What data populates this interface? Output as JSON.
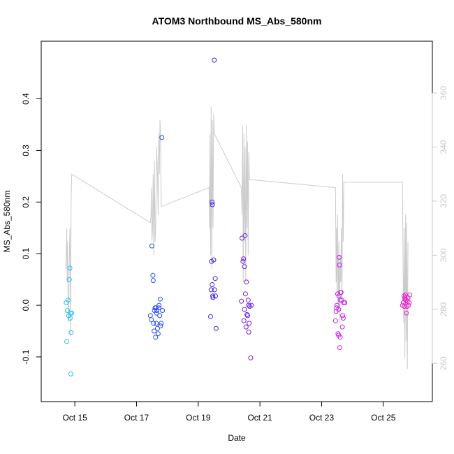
{
  "chart_data": {
    "type": "scatter",
    "title": "ATOM3 Northbound MS_Abs_580nm",
    "xlabel": "Date",
    "ylabel": "MS_Abs_580nm",
    "x_ticks": [
      "Oct 15",
      "Oct 17",
      "Oct 19",
      "Oct 21",
      "Oct 23",
      "Oct 25"
    ],
    "x_tick_days": [
      15,
      17,
      19,
      21,
      23,
      25
    ],
    "xlim_days": [
      14.25,
      26.25
    ],
    "y_ticks": [
      "-0.1",
      "0.0",
      "0.1",
      "0.2",
      "0.3",
      "0.4"
    ],
    "y_tick_values": [
      -0.1,
      0.0,
      0.1,
      0.2,
      0.3,
      0.4
    ],
    "ylim": [
      -0.165,
      0.49
    ],
    "y2_ticks": [
      "260",
      "280",
      "300",
      "320",
      "340",
      "360"
    ],
    "y2_tick_values": [
      260,
      280,
      300,
      320,
      340,
      360
    ],
    "y2lim": [
      250,
      375
    ],
    "grid": false,
    "series": [
      {
        "marker": "open-circle",
        "color_gradient": [
          "#1ec8ee",
          "#1e64e6",
          "#3c1ee6",
          "#8c1ee6",
          "#c81ee6",
          "#ee1ecc"
        ],
        "points": [
          [
            14.72,
            0.005
          ],
          [
            14.74,
            -0.07
          ],
          [
            14.76,
            -0.01
          ],
          [
            14.78,
            0.01
          ],
          [
            14.8,
            -0.02
          ],
          [
            14.82,
            0.05
          ],
          [
            14.84,
            0.072
          ],
          [
            14.85,
            -0.025
          ],
          [
            14.86,
            -0.015
          ],
          [
            14.87,
            -0.133
          ],
          [
            14.88,
            -0.053
          ],
          [
            14.9,
            -0.015
          ],
          [
            17.45,
            -0.02
          ],
          [
            17.48,
            -0.028
          ],
          [
            17.5,
            0.115
          ],
          [
            17.53,
            0.058
          ],
          [
            17.54,
            0.048
          ],
          [
            17.55,
            -0.035
          ],
          [
            17.57,
            -0.05
          ],
          [
            17.58,
            -0.01
          ],
          [
            17.6,
            -0.005
          ],
          [
            17.62,
            -0.062
          ],
          [
            17.63,
            -0.005
          ],
          [
            17.64,
            -0.035
          ],
          [
            17.65,
            -0.015
          ],
          [
            17.66,
            -0.01
          ],
          [
            17.68,
            -0.045
          ],
          [
            17.7,
            -0.055
          ],
          [
            17.72,
            -0.005
          ],
          [
            17.73,
            0.0
          ],
          [
            17.75,
            -0.02
          ],
          [
            17.77,
            0.012
          ],
          [
            17.78,
            -0.04
          ],
          [
            17.8,
            -0.035
          ],
          [
            17.82,
            0.325
          ],
          [
            17.84,
            -0.01
          ],
          [
            19.4,
            -0.022
          ],
          [
            19.42,
            0.03
          ],
          [
            19.43,
            0.085
          ],
          [
            19.45,
            0.2
          ],
          [
            19.46,
            0.195
          ],
          [
            19.47,
            0.018
          ],
          [
            19.48,
            0.015
          ],
          [
            19.5,
            0.088
          ],
          [
            19.52,
            0.475
          ],
          [
            19.53,
            0.03
          ],
          [
            19.55,
            0.052
          ],
          [
            19.56,
            0.018
          ],
          [
            19.58,
            -0.045
          ],
          [
            19.45,
            0.04
          ],
          [
            20.4,
            0.008
          ],
          [
            20.42,
            0.13
          ],
          [
            20.45,
            0.085
          ],
          [
            20.47,
            0.09
          ],
          [
            20.5,
            -0.008
          ],
          [
            20.52,
            0.135
          ],
          [
            20.53,
            0.022
          ],
          [
            20.55,
            -0.042
          ],
          [
            20.56,
            0.045
          ],
          [
            20.58,
            -0.018
          ],
          [
            20.6,
            -0.02
          ],
          [
            20.62,
            0.01
          ],
          [
            20.63,
            0.0
          ],
          [
            20.64,
            -0.052
          ],
          [
            20.65,
            -0.035
          ],
          [
            20.67,
            -0.002
          ],
          [
            20.7,
            -0.102
          ],
          [
            20.72,
            0.0
          ],
          [
            20.48,
            -0.03
          ],
          [
            20.5,
            0.075
          ],
          [
            23.45,
            -0.03
          ],
          [
            23.47,
            -0.012
          ],
          [
            23.48,
            -0.005
          ],
          [
            23.5,
            0.0
          ],
          [
            23.52,
            0.022
          ],
          [
            23.53,
            -0.055
          ],
          [
            23.55,
            -0.058
          ],
          [
            23.56,
            0.018
          ],
          [
            23.57,
            0.093
          ],
          [
            23.58,
            0.078
          ],
          [
            23.59,
            -0.082
          ],
          [
            23.6,
            -0.062
          ],
          [
            23.62,
            0.025
          ],
          [
            23.63,
            0.025
          ],
          [
            23.65,
            0.01
          ],
          [
            23.67,
            -0.042
          ],
          [
            23.68,
            -0.02
          ],
          [
            23.7,
            -0.025
          ],
          [
            23.72,
            0.005
          ],
          [
            23.75,
            0.005
          ],
          [
            23.55,
            -0.008
          ],
          [
            23.6,
            0.01
          ],
          [
            25.62,
            0.0
          ],
          [
            25.65,
            0.005
          ],
          [
            25.67,
            0.018
          ],
          [
            25.68,
            -0.002
          ],
          [
            25.7,
            0.015
          ],
          [
            25.72,
            0.02
          ],
          [
            25.73,
            0.01
          ],
          [
            25.75,
            -0.015
          ],
          [
            25.77,
            -0.002
          ],
          [
            25.78,
            0.008
          ],
          [
            25.8,
            0.015
          ],
          [
            25.82,
            0.0
          ],
          [
            25.84,
            0.005
          ],
          [
            25.86,
            0.02
          ],
          [
            25.7,
            0.012
          ]
        ]
      },
      {
        "axis": "right",
        "kind": "line",
        "color": "#cccccc",
        "points": [
          [
            14.7,
            295
          ],
          [
            14.72,
            300
          ],
          [
            14.74,
            310
          ],
          [
            14.75,
            290
          ],
          [
            14.76,
            305
          ],
          [
            14.78,
            285
          ],
          [
            14.8,
            275
          ],
          [
            14.82,
            300
          ],
          [
            14.84,
            310
          ],
          [
            14.86,
            270
          ],
          [
            14.88,
            320
          ],
          [
            14.9,
            330
          ],
          [
            17.45,
            312
          ],
          [
            17.47,
            315
          ],
          [
            17.48,
            325
          ],
          [
            17.5,
            305
          ],
          [
            17.52,
            310
          ],
          [
            17.54,
            330
          ],
          [
            17.56,
            300
          ],
          [
            17.58,
            335
          ],
          [
            17.6,
            305
          ],
          [
            17.62,
            310
          ],
          [
            17.65,
            340
          ],
          [
            17.68,
            330
          ],
          [
            17.7,
            315
          ],
          [
            17.72,
            345
          ],
          [
            17.74,
            330
          ],
          [
            17.76,
            350
          ],
          [
            17.78,
            345
          ],
          [
            17.8,
            318
          ],
          [
            19.35,
            325
          ],
          [
            19.37,
            310
          ],
          [
            19.38,
            345
          ],
          [
            19.4,
            300
          ],
          [
            19.42,
            355
          ],
          [
            19.44,
            295
          ],
          [
            19.46,
            350
          ],
          [
            19.48,
            310
          ],
          [
            19.5,
            352
          ],
          [
            19.52,
            345
          ],
          [
            20.4,
            325
          ],
          [
            20.42,
            315
          ],
          [
            20.44,
            348
          ],
          [
            20.46,
            290
          ],
          [
            20.48,
            345
          ],
          [
            20.5,
            305
          ],
          [
            20.52,
            340
          ],
          [
            20.54,
            290
          ],
          [
            20.56,
            348
          ],
          [
            20.58,
            310
          ],
          [
            20.6,
            342
          ],
          [
            20.62,
            300
          ],
          [
            20.64,
            338
          ],
          [
            20.66,
            328
          ],
          [
            23.45,
            325
          ],
          [
            23.47,
            290
          ],
          [
            23.48,
            310
          ],
          [
            23.5,
            285
          ],
          [
            23.52,
            315
          ],
          [
            23.54,
            280
          ],
          [
            23.56,
            305
          ],
          [
            23.58,
            275
          ],
          [
            23.6,
            300
          ],
          [
            23.62,
            290
          ],
          [
            23.64,
            310
          ],
          [
            23.66,
            280
          ],
          [
            23.68,
            330
          ],
          [
            23.7,
            305
          ],
          [
            23.72,
            327
          ],
          [
            25.62,
            327
          ],
          [
            25.64,
            295
          ],
          [
            25.66,
            275
          ],
          [
            25.68,
            310
          ],
          [
            25.7,
            262
          ],
          [
            25.72,
            315
          ],
          [
            25.74,
            268
          ],
          [
            25.76,
            312
          ],
          [
            25.78,
            258
          ],
          [
            25.8,
            305
          ]
        ]
      }
    ]
  }
}
